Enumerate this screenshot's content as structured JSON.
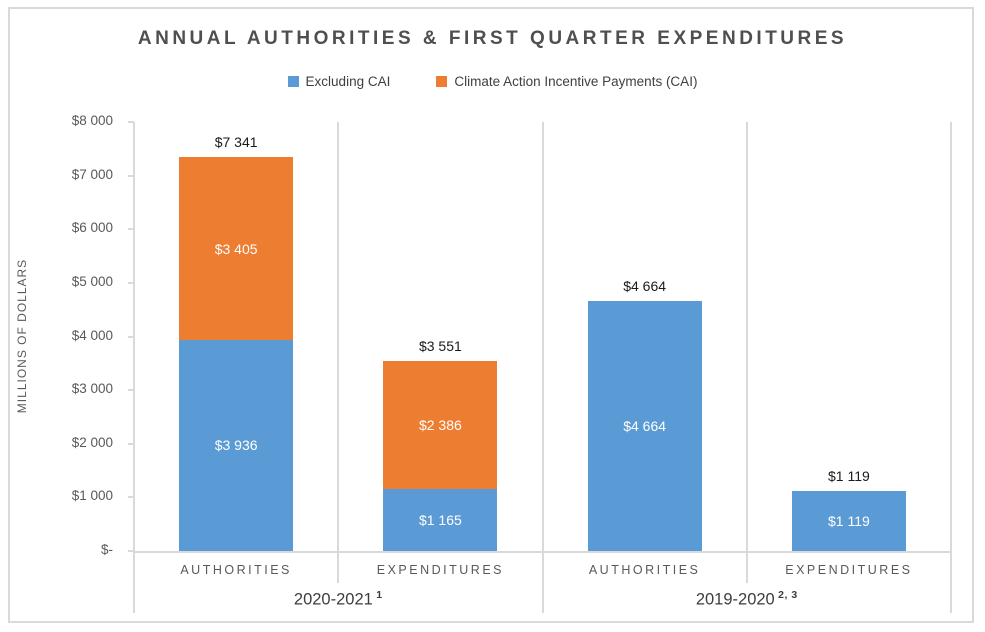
{
  "chart_data": {
    "type": "bar",
    "variant": "stacked-column",
    "title": "ANNUAL AUTHORITIES & FIRST QUARTER EXPENDITURES",
    "ylabel": "MILLIONS OF DOLLARS",
    "ylim": [
      0,
      8000
    ],
    "grid": "off",
    "legend_position": "top-center",
    "y_ticks": [
      {
        "value": 8000,
        "label": "$8 000"
      },
      {
        "value": 7000,
        "label": "$7 000"
      },
      {
        "value": 6000,
        "label": "$6 000"
      },
      {
        "value": 5000,
        "label": "$5 000"
      },
      {
        "value": 4000,
        "label": "$4 000"
      },
      {
        "value": 3000,
        "label": "$3 000"
      },
      {
        "value": 2000,
        "label": "$2 000"
      },
      {
        "value": 1000,
        "label": "$1 000"
      },
      {
        "value": 0,
        "label": "$-"
      }
    ],
    "legend": [
      {
        "name": "Excluding CAI",
        "color": "#5B9BD5"
      },
      {
        "name": "Climate Action Incentive Payments (CAI)",
        "color": "#ED7D31"
      }
    ],
    "groups": [
      {
        "label": "2020-2021",
        "superscript": "1",
        "bars": [
          {
            "category": "AUTHORITIES",
            "total": 7341,
            "total_label": "$7 341",
            "segments": [
              {
                "series": "Excluding CAI",
                "value": 3936,
                "label": "$3 936"
              },
              {
                "series": "Climate Action Incentive Payments (CAI)",
                "value": 3405,
                "label": "$3 405"
              }
            ]
          },
          {
            "category": "EXPENDITURES",
            "total": 3551,
            "total_label": "$3 551",
            "segments": [
              {
                "series": "Excluding CAI",
                "value": 1165,
                "label": "$1 165"
              },
              {
                "series": "Climate Action Incentive Payments (CAI)",
                "value": 2386,
                "label": "$2 386"
              }
            ]
          }
        ]
      },
      {
        "label": "2019-2020",
        "superscript": "2, 3",
        "bars": [
          {
            "category": "AUTHORITIES",
            "total": 4664,
            "total_label": "$4 664",
            "segments": [
              {
                "series": "Excluding CAI",
                "value": 4664,
                "label": "$4 664"
              }
            ]
          },
          {
            "category": "EXPENDITURES",
            "total": 1119,
            "total_label": "$1 119",
            "segments": [
              {
                "series": "Excluding CAI",
                "value": 1119,
                "label": "$1 119"
              }
            ]
          }
        ]
      }
    ],
    "colors": {
      "frame_line": "#D9D9D9",
      "axis_line": "#D9D9D9",
      "tick_text": "#595959",
      "category_text": "#595959",
      "group_text": "#3d3d3d",
      "title_text": "#4f4f4f",
      "total_label_text": "#1a1a1a",
      "segment_label_text": "#FFFFFF"
    }
  }
}
